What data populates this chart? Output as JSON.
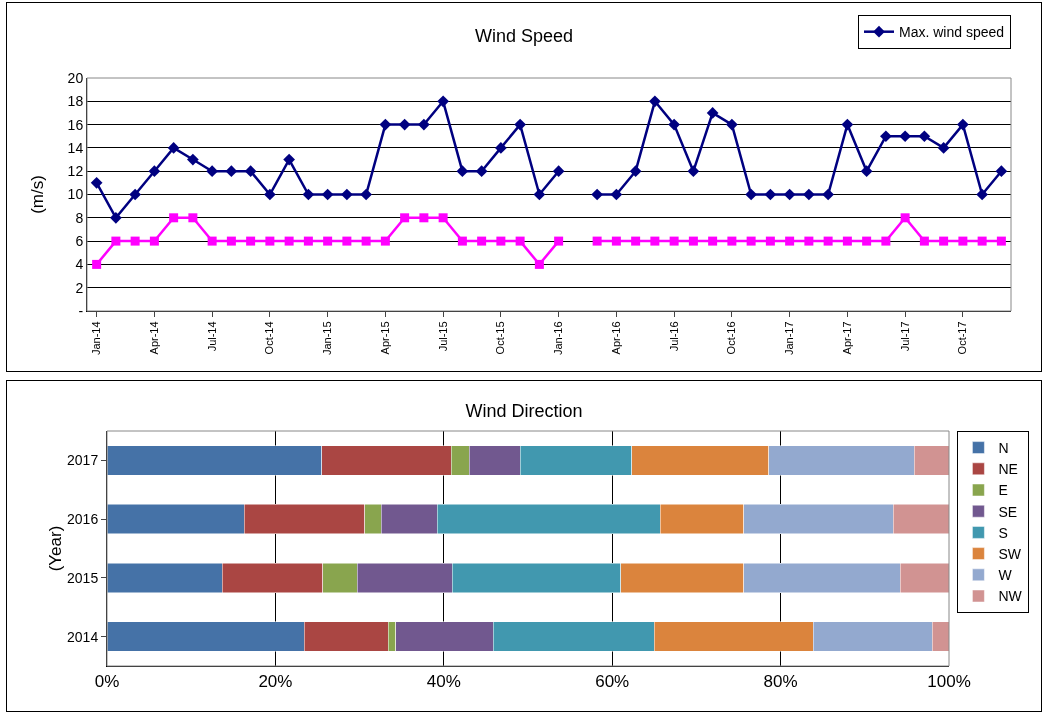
{
  "chart_data": [
    {
      "type": "line",
      "title": "Wind Speed",
      "ylabel": "(m/s)",
      "categories": [
        "Jan-14",
        null,
        null,
        "Apr-14",
        null,
        null,
        "Jul-14",
        null,
        null,
        "Oct-14",
        null,
        null,
        "Jan-15",
        null,
        null,
        "Apr-15",
        null,
        null,
        "Jul-15",
        null,
        null,
        "Oct-15",
        null,
        null,
        "Jan-16",
        null,
        null,
        "Apr-16",
        null,
        null,
        "Jul-16",
        null,
        null,
        "Oct-16",
        null,
        null,
        "Jan-17",
        null,
        null,
        "Apr-17",
        null,
        null,
        "Jul-17",
        null,
        null,
        "Oct-17",
        null,
        null
      ],
      "series": [
        {
          "name": "Max. wind speed",
          "color": "#000080",
          "marker": "diamond",
          "values": [
            11,
            8,
            10,
            12,
            14,
            13,
            12,
            12,
            12,
            10,
            13,
            10,
            10,
            10,
            10,
            16,
            16,
            16,
            18,
            12,
            12,
            14,
            16,
            10,
            12,
            null,
            10,
            10,
            12,
            18,
            16,
            12,
            17,
            16,
            10,
            10,
            10,
            10,
            10,
            16,
            12,
            15,
            15,
            15,
            14,
            16,
            10,
            12
          ]
        },
        {
          "color": "#ff00ff",
          "marker": "square",
          "values": [
            4,
            6,
            6,
            6,
            8,
            8,
            6,
            6,
            6,
            6,
            6,
            6,
            6,
            6,
            6,
            6,
            8,
            8,
            8,
            6,
            6,
            6,
            6,
            4,
            6,
            null,
            6,
            6,
            6,
            6,
            6,
            6,
            6,
            6,
            6,
            6,
            6,
            6,
            6,
            6,
            6,
            6,
            8,
            6,
            6,
            6,
            6,
            6
          ]
        }
      ],
      "ylim": [
        0,
        20
      ],
      "yticks": [
        {
          "value": 0,
          "label": "-"
        },
        2,
        4,
        6,
        8,
        10,
        12,
        14,
        16,
        18,
        20
      ],
      "grid": "y",
      "legend": "top right",
      "line_style": "solid"
    },
    {
      "type": "bar",
      "title": "Wind Direction",
      "ylabel": "(Year)",
      "orientation": "horizontal",
      "stacked": true,
      "categories": [
        "2017",
        "2016",
        "2015",
        "2014"
      ],
      "series": [
        {
          "name": "N",
          "color": "#4572a7",
          "values": [
            25.5,
            16.3,
            13.7,
            23.4
          ]
        },
        {
          "name": "NE",
          "color": "#aa4643",
          "values": [
            15.4,
            14.3,
            11.9,
            10.0
          ]
        },
        {
          "name": "E",
          "color": "#89a54e",
          "values": [
            2.1,
            2.0,
            4.1,
            0.9
          ]
        },
        {
          "name": "SE",
          "color": "#71588f",
          "values": [
            6.1,
            6.6,
            11.3,
            11.6
          ]
        },
        {
          "name": "S",
          "color": "#4198af",
          "values": [
            13.2,
            26.5,
            20.0,
            19.1
          ]
        },
        {
          "name": "SW",
          "color": "#db843d",
          "values": [
            16.3,
            9.9,
            14.6,
            18.9
          ]
        },
        {
          "name": "W",
          "color": "#93a9cf",
          "values": [
            17.3,
            17.8,
            18.6,
            14.1
          ]
        },
        {
          "name": "NW",
          "color": "#d19392",
          "values": [
            4.1,
            6.6,
            5.8,
            2.0
          ]
        }
      ],
      "xlim": [
        0,
        100
      ],
      "xticks": [
        {
          "value": 0,
          "label": "0%"
        },
        {
          "value": 20,
          "label": "20%"
        },
        {
          "value": 40,
          "label": "40%"
        },
        {
          "value": 60,
          "label": "60%"
        },
        {
          "value": 80,
          "label": "80%"
        },
        {
          "value": 100,
          "label": "100%"
        }
      ],
      "grid": "x",
      "legend": "right"
    }
  ]
}
